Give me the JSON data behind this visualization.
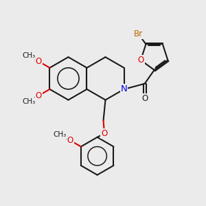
{
  "bg_color": "#ebebeb",
  "bond_color": "#1a1a1a",
  "n_color": "#0000ee",
  "o_color": "#dd0000",
  "br_color": "#bb6600",
  "lw": 1.5,
  "fs": 8.5,
  "xlim": [
    0,
    10
  ],
  "ylim": [
    0,
    10
  ]
}
